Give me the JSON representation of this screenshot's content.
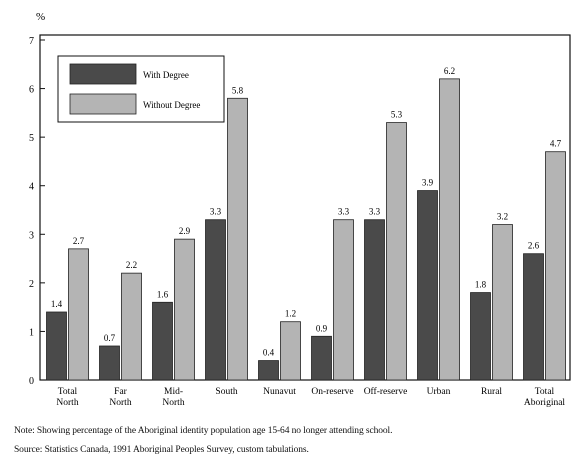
{
  "chart_data": {
    "type": "bar",
    "ylabel": "%",
    "ylim": [
      0,
      7
    ],
    "yticks": [
      0,
      1,
      2,
      3,
      4,
      5,
      6,
      7
    ],
    "grid": false,
    "legend_position": "top-left",
    "categories": [
      [
        "Total",
        "North"
      ],
      [
        "Far",
        "North"
      ],
      [
        "Mid-",
        "North"
      ],
      [
        "South"
      ],
      [
        "Nunavut"
      ],
      [
        "On-reserve"
      ],
      [
        "Off-reserve"
      ],
      [
        "Urban"
      ],
      [
        "Rural"
      ],
      [
        "Total",
        "Aboriginal"
      ]
    ],
    "series": [
      {
        "name": "With Degree",
        "color": "#4a4a4a",
        "values": [
          1.4,
          0.7,
          1.6,
          3.3,
          0.4,
          0.9,
          3.3,
          3.9,
          1.8,
          2.6
        ],
        "labels": [
          "1.4",
          "0.7",
          "1.6",
          "3.3",
          "0.4",
          "0.9",
          "3.3",
          "3.9",
          "1.8",
          "2.6"
        ]
      },
      {
        "name": "Without Degree",
        "color": "#b4b4b4",
        "values": [
          2.7,
          2.2,
          2.9,
          5.8,
          1.2,
          3.3,
          5.3,
          6.2,
          3.2,
          4.7
        ],
        "labels": [
          "2.7",
          "2.2",
          "2.9",
          "5.8",
          "1.2",
          "3.3",
          "5.3",
          "6.2",
          "3.2",
          "4.7"
        ]
      }
    ]
  },
  "note": "Note: Showing percentage of the Aboriginal identity population age 15-64 no longer attending school.",
  "source": "Source: Statistics Canada, 1991 Aboriginal Peoples Survey, custom tabulations."
}
